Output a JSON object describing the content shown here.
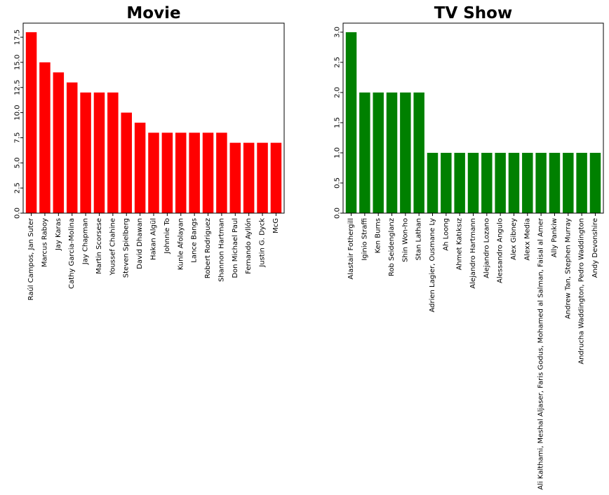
{
  "chart_data": [
    {
      "type": "bar",
      "title": "Movie",
      "color": "#ff0000",
      "categories": [
        "Raúl Campos, Jan Suter",
        "Marcus Raboy",
        "Jay Karas",
        "Cathy Garcia-Molina",
        "Jay Chapman",
        "Martin Scorsese",
        "Youssef Chahine",
        "Steven Spielberg",
        "David Dhawan",
        "Hakan Algül",
        "Johnnie To",
        "Kunle Afolayan",
        "Lance Bangs",
        "Robert Rodriguez",
        "Shannon Hartman",
        "Don Michael Paul",
        "Fernando Ayllón",
        "Justin G. Dyck",
        "McG"
      ],
      "values": [
        18,
        15,
        14,
        13,
        12,
        12,
        12,
        10,
        9,
        8,
        8,
        8,
        8,
        8,
        8,
        7,
        7,
        7,
        7
      ],
      "yticks": [
        0.0,
        2.5,
        5.0,
        7.5,
        10.0,
        12.5,
        15.0,
        17.5
      ],
      "ytick_labels": [
        "0.0",
        "2.5",
        "5.0",
        "7.5",
        "10.0",
        "12.5",
        "15.0",
        "17.5"
      ],
      "ylim": [
        0,
        18.9
      ],
      "xlabel": "",
      "ylabel": "",
      "grid": false
    },
    {
      "type": "bar",
      "title": "TV Show",
      "color": "#008000",
      "categories": [
        "Alastair Fothergill",
        "Iginio Straffi",
        "Ken Burns",
        "Rob Seidenglanz",
        "Shin Won-ho",
        "Stan Lathan",
        "Adrien Lagier, Ousmane Ly",
        "Ah Loong",
        "Ahmet Katıksız",
        "Alejandro Hartmann",
        "Alejandro Lozano",
        "Alessandro Angulo",
        "Alex Gibney",
        "Alexx Media",
        "Ali Kalthami, Meshal Aljaser, Faris Godus, Mohamed al Salman, Faisal al Amer",
        "Ally Pankiw",
        "Andrew Tan, Stephen Murray",
        "Andrucha Waddington, Pedro Waddington",
        "Andy Devonshire"
      ],
      "values": [
        3,
        2,
        2,
        2,
        2,
        2,
        1,
        1,
        1,
        1,
        1,
        1,
        1,
        1,
        1,
        1,
        1,
        1,
        1
      ],
      "yticks": [
        0.0,
        0.5,
        1.0,
        1.5,
        2.0,
        2.5,
        3.0
      ],
      "ytick_labels": [
        "0.0",
        "0.5",
        "1.0",
        "1.5",
        "2.0",
        "2.5",
        "3.0"
      ],
      "ylim": [
        0,
        3.15
      ],
      "xlabel": "",
      "ylabel": "",
      "grid": false
    }
  ]
}
